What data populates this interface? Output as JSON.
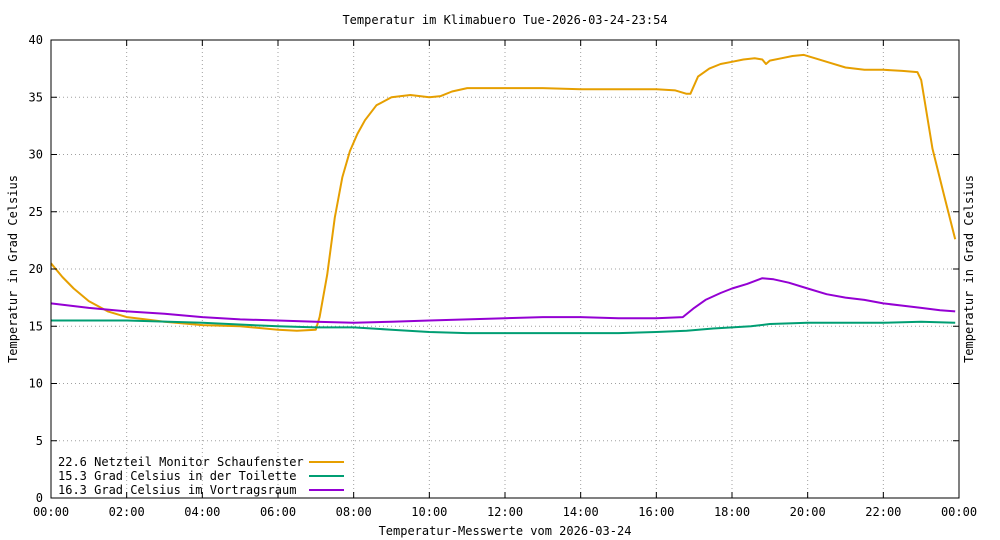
{
  "chart_data": {
    "type": "line",
    "title": "Temperatur im Klimabuero Tue-2026-03-24-23:54",
    "xlabel": "Temperatur-Messwerte vom 2026-03-24",
    "ylabel": "Temperatur in Grad Celsius",
    "ylabel_right": "Temperatur in Grad Celsius",
    "xlim": [
      0,
      24
    ],
    "ylim": [
      0,
      40
    ],
    "x_ticks": [
      0,
      2,
      4,
      6,
      8,
      10,
      12,
      14,
      16,
      18,
      20,
      22,
      24
    ],
    "x_tick_labels": [
      "00:00",
      "02:00",
      "04:00",
      "06:00",
      "08:00",
      "10:00",
      "12:00",
      "14:00",
      "16:00",
      "18:00",
      "20:00",
      "22:00",
      "00:00"
    ],
    "y_ticks": [
      0,
      5,
      10,
      15,
      20,
      25,
      30,
      35,
      40
    ],
    "y_tick_labels": [
      "0",
      "5",
      "10",
      "15",
      "20",
      "25",
      "30",
      "35",
      "40"
    ],
    "grid": true,
    "legend_position": "bottom-left",
    "series": [
      {
        "name": "22.6 Netzteil Monitor Schaufenster",
        "color": "#e69f00",
        "x": [
          0,
          0.3,
          0.6,
          1.0,
          1.5,
          2.0,
          2.5,
          3.0,
          4.0,
          5.0,
          6.0,
          6.5,
          7.0,
          7.1,
          7.3,
          7.5,
          7.7,
          7.9,
          8.1,
          8.3,
          8.6,
          9.0,
          9.5,
          10.0,
          10.3,
          10.6,
          11.0,
          12.0,
          13.0,
          14.0,
          15.0,
          16.0,
          16.5,
          16.8,
          16.9,
          17.1,
          17.4,
          17.7,
          18.0,
          18.3,
          18.6,
          18.8,
          18.9,
          19.0,
          19.3,
          19.6,
          19.9,
          20.2,
          20.6,
          21.0,
          21.5,
          22.0,
          22.5,
          22.9,
          23.0,
          23.1,
          23.3,
          23.6,
          23.9
        ],
        "y": [
          20.5,
          19.3,
          18.3,
          17.2,
          16.3,
          15.8,
          15.6,
          15.4,
          15.1,
          15.0,
          14.7,
          14.6,
          14.7,
          15.8,
          19.5,
          24.5,
          28.0,
          30.3,
          31.8,
          33.0,
          34.3,
          35.0,
          35.2,
          35.0,
          35.1,
          35.5,
          35.8,
          35.8,
          35.8,
          35.7,
          35.7,
          35.7,
          35.6,
          35.3,
          35.3,
          36.8,
          37.5,
          37.9,
          38.1,
          38.3,
          38.4,
          38.3,
          37.9,
          38.2,
          38.4,
          38.6,
          38.7,
          38.4,
          38.0,
          37.6,
          37.4,
          37.4,
          37.3,
          37.2,
          36.5,
          34.5,
          30.5,
          26.5,
          22.6
        ]
      },
      {
        "name": "15.3 Grad Celsius in der Toilette",
        "color": "#009e73",
        "x": [
          0,
          2,
          4,
          6,
          7,
          8,
          9,
          10,
          11,
          12,
          13,
          14,
          15,
          16,
          16.8,
          17.5,
          18.5,
          19.0,
          20.0,
          21.0,
          22.0,
          23.0,
          23.9
        ],
        "y": [
          15.5,
          15.5,
          15.3,
          15.0,
          14.9,
          14.9,
          14.7,
          14.5,
          14.4,
          14.4,
          14.4,
          14.4,
          14.4,
          14.5,
          14.6,
          14.8,
          15.0,
          15.2,
          15.3,
          15.3,
          15.3,
          15.4,
          15.3
        ]
      },
      {
        "name": "16.3 Grad Celsius im Vortragsraum",
        "color": "#9400d3",
        "x": [
          0,
          1,
          2,
          3,
          4,
          5,
          6,
          7,
          8,
          9,
          10,
          11,
          12,
          13,
          14,
          15,
          16,
          16.7,
          17.0,
          17.3,
          17.7,
          18.0,
          18.4,
          18.8,
          19.1,
          19.5,
          20.0,
          20.5,
          21.0,
          21.5,
          22.0,
          22.5,
          23.0,
          23.5,
          23.9
        ],
        "y": [
          17.0,
          16.6,
          16.3,
          16.1,
          15.8,
          15.6,
          15.5,
          15.4,
          15.3,
          15.4,
          15.5,
          15.6,
          15.7,
          15.8,
          15.8,
          15.7,
          15.7,
          15.8,
          16.6,
          17.3,
          17.9,
          18.3,
          18.7,
          19.2,
          19.1,
          18.8,
          18.3,
          17.8,
          17.5,
          17.3,
          17.0,
          16.8,
          16.6,
          16.4,
          16.3
        ]
      }
    ]
  }
}
